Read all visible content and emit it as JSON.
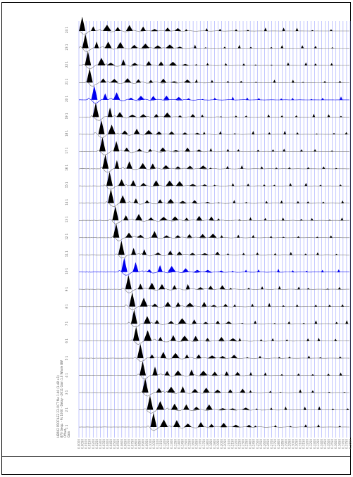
{
  "chart_data": {
    "type": "line",
    "description_text": [
      "HBRK2 PROFILE2 23-OCT file 1-40 (1-48 +1)",
      "870 Geop. - Fs 1000 - Delay -.0011 Gain 1.0 Whole BW",
      "Offset",
      "Gain"
    ],
    "channels": [
      "24",
      "23",
      "22",
      "21",
      "20",
      "19",
      "18",
      "17",
      "16",
      "15",
      "14",
      "13",
      "12",
      "11",
      "10",
      "9",
      "8",
      "7",
      "6",
      "5",
      "4",
      "3",
      "2",
      "1"
    ],
    "channel_labels": [
      "24  1",
      "23  1",
      "22  1",
      "21  1",
      "20  1",
      "19  1",
      "18  1",
      "17  1",
      "16  1",
      "15  1",
      "14  1",
      "13  1",
      "12  1",
      "11  1",
      "10  1",
      "9  1",
      "8  1",
      "7  1",
      "6  1",
      "5  1",
      "4  1",
      "3  1",
      "2  1",
      "1  1"
    ],
    "highlighted_channels": [
      "20",
      "10"
    ],
    "time_ticks": [
      "0.0000",
      "0.0050",
      "0.0100",
      "0.0150",
      "0.0200",
      "0.0250",
      "0.0300",
      "0.0350",
      "0.0400",
      "0.0450",
      "0.0500",
      "0.0550",
      "0.0600",
      "0.0650",
      "0.0700",
      "0.0750",
      "0.0800",
      "0.0850",
      "0.0900",
      "0.0950",
      "0.1000",
      "0.1050",
      "0.1100",
      "0.1150",
      "0.1200",
      "0.1250",
      "0.1300",
      "0.1350",
      "0.1400",
      "0.1450",
      "0.1500",
      "0.1550",
      "0.1600",
      "0.1650",
      "0.1700",
      "0.1750",
      "0.1800",
      "0.1850",
      "0.1900",
      "0.1950",
      "0.2000",
      "0.2050",
      "0.2100",
      "0.2150",
      "0.2200",
      "0.2250",
      "0.2300",
      "0.2350",
      "0.2400",
      "0.2450",
      "0.2500",
      "0.2550",
      "0.2600",
      "0.2650",
      "0.2700",
      "0.2750",
      "0.2800",
      "0.2850",
      "0.2900",
      "0.2950",
      "0.3000",
      "0.3050",
      "0.3100",
      "0.3150",
      "0.3200",
      "0.3250",
      "0.3300",
      "0.3350",
      "0.3400",
      "0.3450",
      "0.3500",
      "0.3550",
      "0.3600",
      "0.3650",
      "0.3700",
      "0.3750",
      "0.3800"
    ],
    "first_break_ms": [
      1,
      5,
      9,
      13,
      17,
      21,
      26,
      30,
      34,
      38,
      42,
      46,
      50,
      55,
      60,
      64,
      69,
      73,
      77,
      81,
      86,
      90,
      95,
      99
    ],
    "grid": true,
    "colors": {
      "trace": "#000000",
      "highlight_trace": "#0000ee",
      "grid": "#9aa0ff",
      "baseline": "#777777"
    }
  }
}
